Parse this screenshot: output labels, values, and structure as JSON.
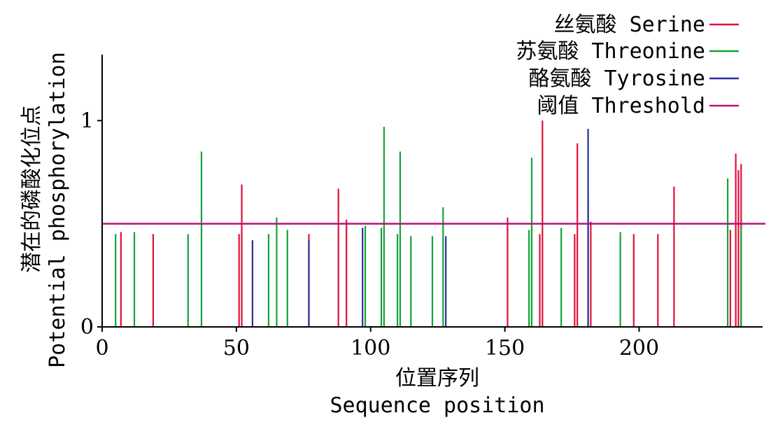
{
  "chart_data": {
    "type": "bar",
    "xlabel": {
      "cn": "位置序列",
      "en": "Sequence position"
    },
    "ylabel": {
      "cn": "潜在的磷酸化位点",
      "en": "Potential phosphorylation"
    },
    "xlim": [
      0,
      246
    ],
    "ylim": [
      0,
      1.32
    ],
    "xticks": [
      0,
      50,
      100,
      150,
      200
    ],
    "yticks": [
      0,
      1
    ],
    "threshold": 0.5,
    "legend_position": "top-right",
    "series": [
      {
        "name": "丝氨酸 Serine",
        "color": "#e0103a",
        "points": [
          [
            7,
            0.46
          ],
          [
            19,
            0.45
          ],
          [
            51,
            0.45
          ],
          [
            52,
            0.69
          ],
          [
            77,
            0.45
          ],
          [
            88,
            0.67
          ],
          [
            91,
            0.52
          ],
          [
            151,
            0.53
          ],
          [
            163,
            0.45
          ],
          [
            164,
            1.0
          ],
          [
            176,
            0.45
          ],
          [
            177,
            0.89
          ],
          [
            182,
            0.51
          ],
          [
            198,
            0.45
          ],
          [
            207,
            0.45
          ],
          [
            213,
            0.68
          ],
          [
            234,
            0.47
          ],
          [
            236,
            0.84
          ],
          [
            237,
            0.76
          ],
          [
            238,
            0.79
          ]
        ]
      },
      {
        "name": "苏氨酸 Threonine",
        "color": "#13a338",
        "points": [
          [
            5,
            0.45
          ],
          [
            12,
            0.46
          ],
          [
            32,
            0.45
          ],
          [
            37,
            0.85
          ],
          [
            62,
            0.45
          ],
          [
            65,
            0.53
          ],
          [
            69,
            0.47
          ],
          [
            98,
            0.49
          ],
          [
            104,
            0.48
          ],
          [
            105,
            0.97
          ],
          [
            110,
            0.45
          ],
          [
            111,
            0.85
          ],
          [
            115,
            0.44
          ],
          [
            123,
            0.44
          ],
          [
            127,
            0.58
          ],
          [
            159,
            0.47
          ],
          [
            160,
            0.82
          ],
          [
            171,
            0.48
          ],
          [
            181,
            0.64
          ],
          [
            193,
            0.46
          ],
          [
            233,
            0.72
          ],
          [
            238,
            0.48
          ]
        ]
      },
      {
        "name": "酪氨酸 Tyrosine",
        "color": "#2b2d9e",
        "points": [
          [
            56,
            0.42
          ],
          [
            77,
            0.42
          ],
          [
            97,
            0.48
          ],
          [
            128,
            0.44
          ],
          [
            181,
            0.96
          ]
        ]
      },
      {
        "name": "阈值 Threshold",
        "color": "#b5127a",
        "line_value": 0.5
      }
    ]
  }
}
